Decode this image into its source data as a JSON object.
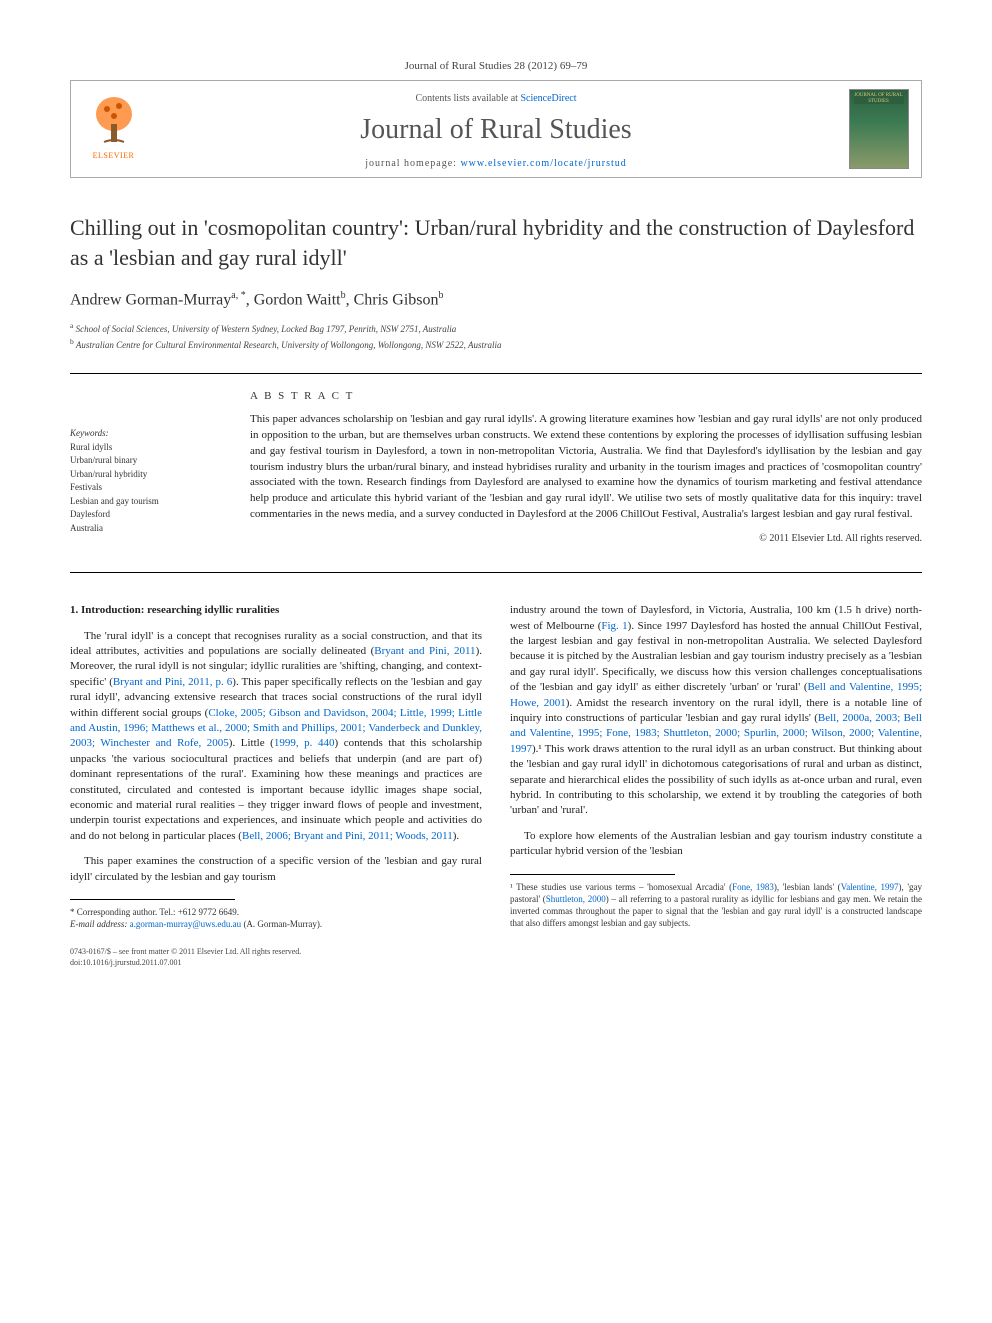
{
  "journal_ref": "Journal of Rural Studies 28 (2012) 69–79",
  "header": {
    "contents_prefix": "Contents lists available at ",
    "contents_link": "ScienceDirect",
    "journal_title": "Journal of Rural Studies",
    "homepage_prefix": "journal homepage: ",
    "homepage_url": "www.elsevier.com/locate/jrurstud",
    "publisher_name": "ELSEVIER",
    "cover_label": "JOURNAL OF RURAL STUDIES"
  },
  "article": {
    "title": "Chilling out in 'cosmopolitan country': Urban/rural hybridity and the construction of Daylesford as a 'lesbian and gay rural idyll'",
    "authors_html": "Andrew Gorman-Murray",
    "authors": [
      {
        "name": "Andrew Gorman-Murray",
        "marks": "a, *"
      },
      {
        "name": "Gordon Waitt",
        "marks": "b"
      },
      {
        "name": "Chris Gibson",
        "marks": "b"
      }
    ],
    "affiliations": [
      {
        "mark": "a",
        "text": "School of Social Sciences, University of Western Sydney, Locked Bag 1797, Penrith, NSW 2751, Australia"
      },
      {
        "mark": "b",
        "text": "Australian Centre for Cultural Environmental Research, University of Wollongong, Wollongong, NSW 2522, Australia"
      }
    ]
  },
  "keywords": {
    "heading": "Keywords:",
    "items": [
      "Rural idylls",
      "Urban/rural binary",
      "Urban/rural hybridity",
      "Festivals",
      "Lesbian and gay tourism",
      "Daylesford",
      "Australia"
    ]
  },
  "abstract": {
    "heading": "A B S T R A C T",
    "text": "This paper advances scholarship on 'lesbian and gay rural idylls'. A growing literature examines how 'lesbian and gay rural idylls' are not only produced in opposition to the urban, but are themselves urban constructs. We extend these contentions by exploring the processes of idyllisation suffusing lesbian and gay festival tourism in Daylesford, a town in non-metropolitan Victoria, Australia. We find that Daylesford's idyllisation by the lesbian and gay tourism industry blurs the urban/rural binary, and instead hybridises rurality and urbanity in the tourism images and practices of 'cosmopolitan country' associated with the town. Research findings from Daylesford are analysed to examine how the dynamics of tourism marketing and festival attendance help produce and articulate this hybrid variant of the 'lesbian and gay rural idyll'. We utilise two sets of mostly qualitative data for this inquiry: travel commentaries in the news media, and a survey conducted in Daylesford at the 2006 ChillOut Festival, Australia's largest lesbian and gay rural festival.",
    "copyright": "© 2011 Elsevier Ltd. All rights reserved."
  },
  "body": {
    "section_heading": "1. Introduction: researching idyllic ruralities",
    "col1_p1": "The 'rural idyll' is a concept that recognises rurality as a social construction, and that its ideal attributes, activities and populations are socially delineated (Bryant and Pini, 2011). Moreover, the rural idyll is not singular; idyllic ruralities are 'shifting, changing, and context-specific' (Bryant and Pini, 2011, p. 6). This paper specifically reflects on the 'lesbian and gay rural idyll', advancing extensive research that traces social constructions of the rural idyll within different social groups (Cloke, 2005; Gibson and Davidson, 2004; Little, 1999; Little and Austin, 1996; Matthews et al., 2000; Smith and Phillips, 2001; Vanderbeck and Dunkley, 2003; Winchester and Rofe, 2005). Little (1999, p. 440) contends that this scholarship unpacks 'the various sociocultural practices and beliefs that underpin (and are part of) dominant representations of the rural'. Examining how these meanings and practices are constituted, circulated and contested is important because idyllic images shape social, economic and material rural realities – they trigger inward flows of people and investment, underpin tourist expectations and experiences, and insinuate which people and activities do and do not belong in particular places (Bell, 2006; Bryant and Pini, 2011; Woods, 2011).",
    "col1_p2": "This paper examines the construction of a specific version of the 'lesbian and gay rural idyll' circulated by the lesbian and gay tourism",
    "col2_p1": "industry around the town of Daylesford, in Victoria, Australia, 100 km (1.5 h drive) north-west of Melbourne (Fig. 1). Since 1997 Daylesford has hosted the annual ChillOut Festival, the largest lesbian and gay festival in non-metropolitan Australia. We selected Daylesford because it is pitched by the Australian lesbian and gay tourism industry precisely as a 'lesbian and gay rural idyll'. Specifically, we discuss how this version challenges conceptualisations of the 'lesbian and gay idyll' as either discretely 'urban' or 'rural' (Bell and Valentine, 1995; Howe, 2001). Amidst the research inventory on the rural idyll, there is a notable line of inquiry into constructions of particular 'lesbian and gay rural idylls' (Bell, 2000a, 2003; Bell and Valentine, 1995; Fone, 1983; Shuttleton, 2000; Spurlin, 2000; Wilson, 2000; Valentine, 1997).¹ This work draws attention to the rural idyll as an urban construct. But thinking about the 'lesbian and gay rural idyll' in dichotomous categorisations of rural and urban as distinct, separate and hierarchical elides the possibility of such idylls as at-once urban and rural, even hybrid. In contributing to this scholarship, we extend it by troubling the categories of both 'urban' and 'rural'.",
    "col2_p2": "To explore how elements of the Australian lesbian and gay tourism industry constitute a particular hybrid version of the 'lesbian"
  },
  "footnotes": {
    "left": {
      "corr_author": "* Corresponding author. Tel.: +612 9772 6649.",
      "email_label": "E-mail address: ",
      "email": "a.gorman-murray@uws.edu.au",
      "email_suffix": " (A. Gorman-Murray)."
    },
    "right": {
      "text": "¹ These studies use various terms – 'homosexual Arcadia' (Fone, 1983), 'lesbian lands' (Valentine, 1997), 'gay pastoral' (Shuttleton, 2000) – all referring to a pastoral rurality as idyllic for lesbians and gay men. We retain the inverted commas throughout the paper to signal that the 'lesbian and gay rural idyll' is a constructed landscape that also differs amongst lesbian and gay subjects."
    }
  },
  "footer": {
    "line1": "0743-0167/$ – see front matter © 2011 Elsevier Ltd. All rights reserved.",
    "line2": "doi:10.1016/j.jrurstud.2011.07.001"
  },
  "colors": {
    "link": "#0066cc",
    "elsevier_orange": "#ff6600",
    "text": "#222222",
    "border": "#aaaaaa"
  }
}
